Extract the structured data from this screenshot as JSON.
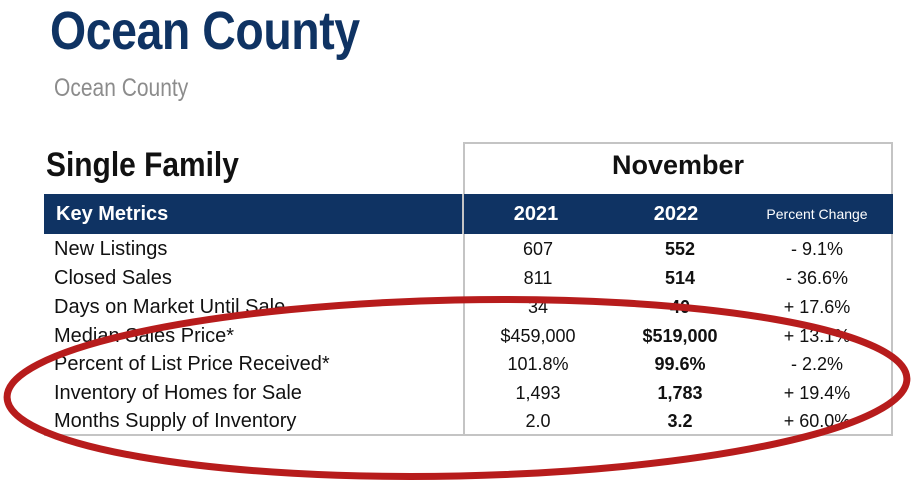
{
  "header": {
    "title": "Ocean County",
    "subtitle": "Ocean County"
  },
  "section": {
    "title": "Single Family",
    "period": "November"
  },
  "table": {
    "columns": {
      "metric": "Key Metrics",
      "year1": "2021",
      "year2": "2022",
      "change": "Percent Change"
    },
    "rows": [
      {
        "label": "New Listings",
        "year1": "607",
        "year2": "552",
        "change": "- 9.1%"
      },
      {
        "label": "Closed Sales",
        "year1": "811",
        "year2": "514",
        "change": "- 36.6%"
      },
      {
        "label": "Days on Market Until Sale",
        "year1": "34",
        "year2": "40",
        "change": "+ 17.6%"
      },
      {
        "label": "Median Sales Price*",
        "year1": "$459,000",
        "year2": "$519,000",
        "change": "+ 13.1%"
      },
      {
        "label": "Percent of List Price Received*",
        "year1": "101.8%",
        "year2": "99.6%",
        "change": "- 2.2%"
      },
      {
        "label": "Inventory of Homes for Sale",
        "year1": "1,493",
        "year2": "1,783",
        "change": "+ 19.4%"
      },
      {
        "label": "Months Supply of Inventory",
        "year1": "2.0",
        "year2": "3.2",
        "change": "+ 60.0%"
      }
    ]
  },
  "colors": {
    "navy": "#0f3363",
    "annotation": "#b71c1c",
    "border": "#c4c4c4"
  }
}
